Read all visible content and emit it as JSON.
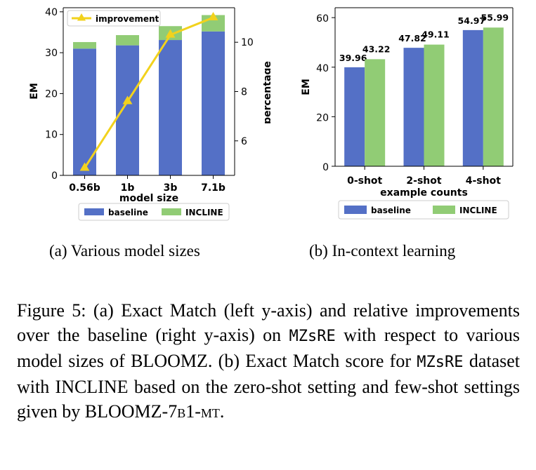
{
  "chart_data": [
    {
      "type": "bar",
      "stacked": true,
      "categories": [
        "0.56b",
        "1b",
        "3b",
        "7.1b"
      ],
      "series": [
        {
          "name": "baseline",
          "values": [
            31.0,
            31.8,
            33.1,
            35.2
          ],
          "color": "#5470c6"
        },
        {
          "name": "INCLINE",
          "values": [
            1.6,
            2.5,
            3.4,
            4.0
          ],
          "color": "#91cc75"
        }
      ],
      "line_series": {
        "name": "improvement",
        "axis": "right",
        "values": [
          4.9,
          7.6,
          10.3,
          11.0
        ],
        "color": "#f2d21d"
      },
      "xlabel": "model size",
      "ylabel": "EM",
      "ylabel_right": "percentage",
      "ylim": [
        0,
        41
      ],
      "yticks": [
        0,
        10,
        20,
        30,
        40
      ],
      "ylim_right": [
        4.6,
        11.4
      ],
      "yticks_right": [
        6,
        8,
        10
      ],
      "legend_line_placement": "top-left",
      "legend_bars_placement": "bottom",
      "grid": false
    },
    {
      "type": "bar",
      "categories": [
        "0-shot",
        "2-shot",
        "4-shot"
      ],
      "series": [
        {
          "name": "baseline",
          "values": [
            39.96,
            47.82,
            54.97
          ],
          "color": "#5470c6"
        },
        {
          "name": "INCLINE",
          "values": [
            43.22,
            49.11,
            55.99
          ],
          "color": "#91cc75"
        }
      ],
      "data_labels": [
        [
          "39.96",
          "47.82",
          "54.97"
        ],
        [
          "43.22",
          "49.11",
          "55.99"
        ]
      ],
      "xlabel": "example counts",
      "ylabel": "EM",
      "ylim": [
        0,
        64
      ],
      "yticks": [
        0,
        20,
        40,
        60
      ],
      "legend_placement": "bottom",
      "grid": false
    }
  ],
  "subcaptions": {
    "a": "(a)  Various model sizes",
    "b": "(b)  In-context learning"
  },
  "caption": {
    "p1": "Figure 5:  (a) Exact Match (left y-axis) and relative improvements over the baseline (right y-axis) on ",
    "dataset1": "MZsRE",
    "p2": " with respect to various model sizes of BLOOMZ. (b) Exact Match score for ",
    "dataset2": "MZsRE",
    "p3": " dataset with INCLINE based on the zero-shot setting and few-shot settings given by BLOOMZ-",
    "model_sc": "7b1-mt",
    "p4": "."
  }
}
